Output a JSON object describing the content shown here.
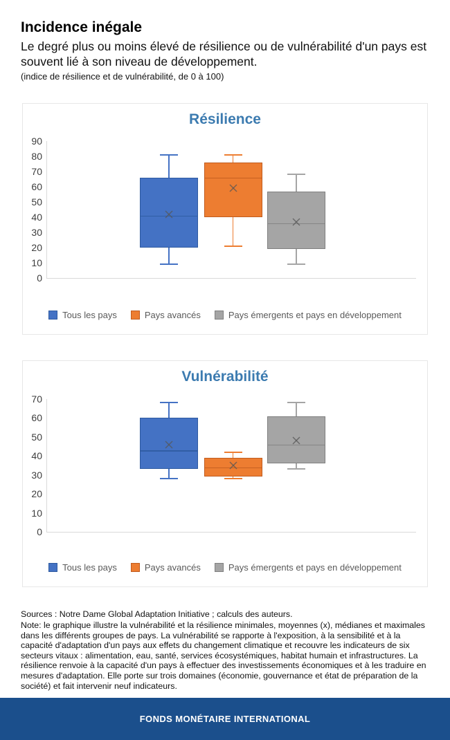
{
  "header": {
    "title": "Incidence inégale",
    "subtitle": "Le degré plus ou moins élevé de résilience ou de vulnérabilité d'un pays est souvent lié à son niveau de développement.",
    "unit_note": "(indice de résilience et de vulnérabilité, de 0 à 100)"
  },
  "colors": {
    "chart_title": "#3C7BB0",
    "series_blue": "#4472C4",
    "series_blue_border": "#2E5AA0",
    "series_orange": "#ED7D31",
    "series_orange_border": "#C05B1E",
    "series_gray": "#A5A5A5",
    "series_gray_border": "#7F7F7F",
    "axis_line": "#D9D9D9",
    "legend_text": "#595959",
    "footer_background": "#1B4F8C"
  },
  "chart_data": [
    {
      "type": "boxplot",
      "title": "Résilience",
      "ylim": [
        0,
        90
      ],
      "ytick_step": 10,
      "grid": false,
      "legend_position": "bottom",
      "series": [
        {
          "name": "Tous les pays",
          "color": "#4472C4",
          "border": "#2E5AA0",
          "min": 9,
          "q1": 20,
          "median": 41,
          "mean": 42,
          "q3": 66,
          "max": 81
        },
        {
          "name": "Pays avancés",
          "color": "#ED7D31",
          "border": "#C05B1E",
          "min": 21,
          "q1": 40,
          "median": 66,
          "mean": 59,
          "q3": 76,
          "max": 81
        },
        {
          "name": "Pays émergents et pays en développement",
          "color": "#A5A5A5",
          "border": "#7F7F7F",
          "min": 9,
          "q1": 19,
          "median": 36,
          "mean": 37,
          "q3": 57,
          "max": 68
        }
      ]
    },
    {
      "type": "boxplot",
      "title": "Vulnérabilité",
      "ylim": [
        0,
        70
      ],
      "ytick_step": 10,
      "grid": false,
      "legend_position": "bottom",
      "series": [
        {
          "name": "Tous les pays",
          "color": "#4472C4",
          "border": "#2E5AA0",
          "min": 28,
          "q1": 33,
          "median": 43,
          "mean": 46,
          "q3": 60,
          "max": 68
        },
        {
          "name": "Pays avancés",
          "color": "#ED7D31",
          "border": "#C05B1E",
          "min": 28,
          "q1": 29,
          "median": 34,
          "mean": 35,
          "q3": 39,
          "max": 42
        },
        {
          "name": "Pays émergents et pays en développement",
          "color": "#A5A5A5",
          "border": "#7F7F7F",
          "min": 33,
          "q1": 36,
          "median": 46,
          "mean": 48,
          "q3": 61,
          "max": 68
        }
      ]
    }
  ],
  "footnotes": {
    "sources": "Sources : Notre Dame Global Adaptation Initiative ; calculs des auteurs.",
    "note": "Note: le graphique illustre la vulnérabilité et la résilience minimales, moyennes (x), médianes et maximales dans les différents groupes de pays. La vulnérabilité se rapporte à l'exposition, à la sensibilité et à la capacité d'adaptation d'un pays aux effets du changement climatique et recouvre les indicateurs de six secteurs vitaux : alimentation, eau, santé, services écosystémiques, habitat humain et infrastructures. La résilience renvoie à la capacité d'un pays à effectuer des investissements économiques et à les traduire en mesures d'adaptation. Elle porte sur trois domaines (économie, gouvernance et état de préparation de la société) et fait intervenir neuf indicateurs."
  },
  "footer": {
    "brand": "FONDS MONÉTAIRE INTERNATIONAL"
  }
}
